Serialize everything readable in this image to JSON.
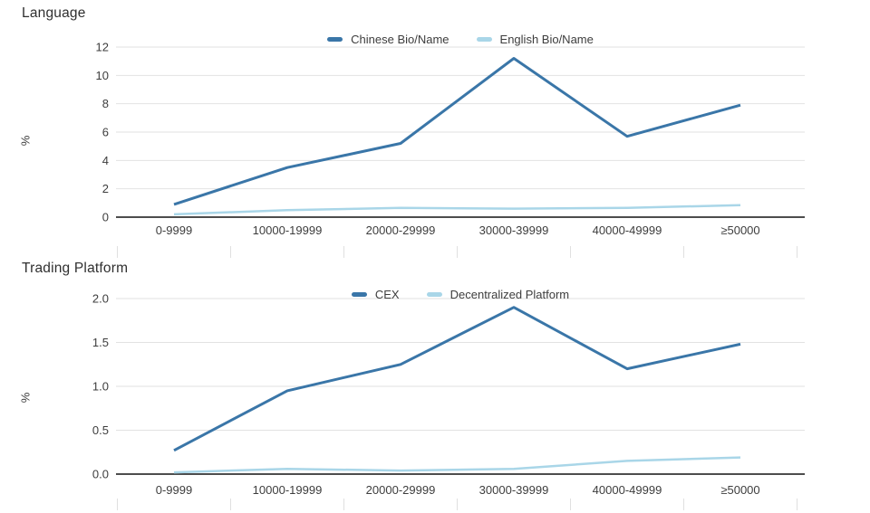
{
  "colors": {
    "dark_blue": "#3a76a8",
    "light_blue": "#a9d6e8",
    "axis": "#4d4d4d",
    "gridline": "#e2e2e2",
    "boundary_tick": "#e0e0e0",
    "label_text": "#3d3d3d"
  },
  "chart_data": [
    {
      "type": "line",
      "title": "Language",
      "ylabel": "%",
      "categories": [
        "0-9999",
        "10000-19999",
        "20000-29999",
        "30000-39999",
        "40000-49999",
        "≥50000"
      ],
      "y_ticks": [
        0,
        2,
        4,
        6,
        8,
        10,
        12
      ],
      "y_tick_labels": [
        "0",
        "2",
        "4",
        "6",
        "8",
        "10",
        "12"
      ],
      "ylim": [
        0,
        12
      ],
      "grid": true,
      "legend_position": "top-center",
      "series": [
        {
          "name": "Chinese Bio/Name",
          "color": "#3a76a8",
          "values": [
            0.9,
            3.5,
            5.2,
            11.2,
            5.7,
            7.9
          ]
        },
        {
          "name": "English Bio/Name",
          "color": "#a9d6e8",
          "values": [
            0.2,
            0.5,
            0.65,
            0.6,
            0.65,
            0.85
          ]
        }
      ]
    },
    {
      "type": "line",
      "title": "Trading Platform",
      "ylabel": "%",
      "categories": [
        "0-9999",
        "10000-19999",
        "20000-29999",
        "30000-39999",
        "40000-49999",
        "≥50000"
      ],
      "y_ticks": [
        0,
        0.5,
        1,
        1.5,
        2
      ],
      "y_tick_labels": [
        "0.0",
        "0.5",
        "1.0",
        "1.5",
        "2.0"
      ],
      "ylim": [
        0,
        2
      ],
      "grid": true,
      "legend_position": "top-center",
      "series": [
        {
          "name": "CEX",
          "color": "#3a76a8",
          "values": [
            0.27,
            0.95,
            1.25,
            1.9,
            1.2,
            1.48
          ]
        },
        {
          "name": "Decentralized Platform",
          "color": "#a9d6e8",
          "values": [
            0.02,
            0.06,
            0.04,
            0.06,
            0.15,
            0.19
          ]
        }
      ]
    }
  ]
}
